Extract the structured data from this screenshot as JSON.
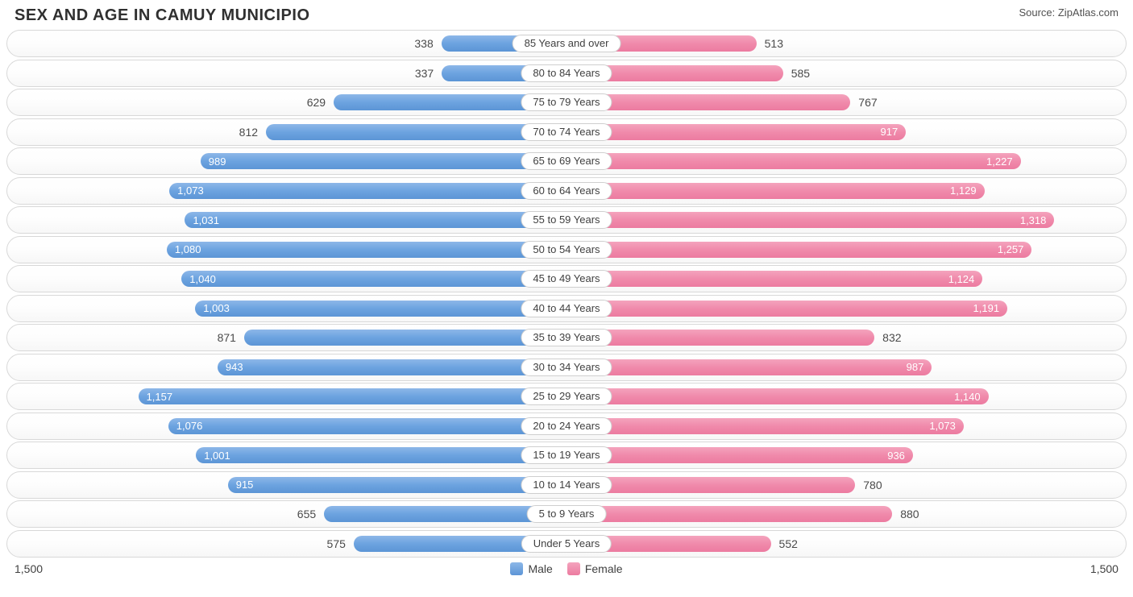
{
  "title": "SEX AND AGE IN CAMUY MUNICIPIO",
  "source_prefix": "Source: ",
  "source_name": "ZipAtlas.com",
  "axis_max": 1500,
  "axis_left_label": "1,500",
  "axis_right_label": "1,500",
  "legend": {
    "male": "Male",
    "female": "Female"
  },
  "colors": {
    "male_top": "#8db7e8",
    "male_bottom": "#5c95d6",
    "female_top": "#f4a3bd",
    "female_bottom": "#ec7ba0",
    "row_border": "#d8d8d8",
    "pill_border": "#cfcfcf",
    "title_text": "#303030",
    "body_text": "#404040",
    "bar_text": "#ffffff",
    "background": "#ffffff"
  },
  "typography": {
    "title_fontsize": 20,
    "title_weight": "bold",
    "label_fontsize": 13,
    "axis_fontsize": 14
  },
  "inner_label_threshold": 900,
  "rows": [
    {
      "label": "85 Years and over",
      "male": 338,
      "male_fmt": "338",
      "female": 513,
      "female_fmt": "513"
    },
    {
      "label": "80 to 84 Years",
      "male": 337,
      "male_fmt": "337",
      "female": 585,
      "female_fmt": "585"
    },
    {
      "label": "75 to 79 Years",
      "male": 629,
      "male_fmt": "629",
      "female": 767,
      "female_fmt": "767"
    },
    {
      "label": "70 to 74 Years",
      "male": 812,
      "male_fmt": "812",
      "female": 917,
      "female_fmt": "917"
    },
    {
      "label": "65 to 69 Years",
      "male": 989,
      "male_fmt": "989",
      "female": 1227,
      "female_fmt": "1,227"
    },
    {
      "label": "60 to 64 Years",
      "male": 1073,
      "male_fmt": "1,073",
      "female": 1129,
      "female_fmt": "1,129"
    },
    {
      "label": "55 to 59 Years",
      "male": 1031,
      "male_fmt": "1,031",
      "female": 1318,
      "female_fmt": "1,318"
    },
    {
      "label": "50 to 54 Years",
      "male": 1080,
      "male_fmt": "1,080",
      "female": 1257,
      "female_fmt": "1,257"
    },
    {
      "label": "45 to 49 Years",
      "male": 1040,
      "male_fmt": "1,040",
      "female": 1124,
      "female_fmt": "1,124"
    },
    {
      "label": "40 to 44 Years",
      "male": 1003,
      "male_fmt": "1,003",
      "female": 1191,
      "female_fmt": "1,191"
    },
    {
      "label": "35 to 39 Years",
      "male": 871,
      "male_fmt": "871",
      "female": 832,
      "female_fmt": "832"
    },
    {
      "label": "30 to 34 Years",
      "male": 943,
      "male_fmt": "943",
      "female": 987,
      "female_fmt": "987"
    },
    {
      "label": "25 to 29 Years",
      "male": 1157,
      "male_fmt": "1,157",
      "female": 1140,
      "female_fmt": "1,140"
    },
    {
      "label": "20 to 24 Years",
      "male": 1076,
      "male_fmt": "1,076",
      "female": 1073,
      "female_fmt": "1,073"
    },
    {
      "label": "15 to 19 Years",
      "male": 1001,
      "male_fmt": "1,001",
      "female": 936,
      "female_fmt": "936"
    },
    {
      "label": "10 to 14 Years",
      "male": 915,
      "male_fmt": "915",
      "female": 780,
      "female_fmt": "780"
    },
    {
      "label": "5 to 9 Years",
      "male": 655,
      "male_fmt": "655",
      "female": 880,
      "female_fmt": "880"
    },
    {
      "label": "Under 5 Years",
      "male": 575,
      "male_fmt": "575",
      "female": 552,
      "female_fmt": "552"
    }
  ]
}
